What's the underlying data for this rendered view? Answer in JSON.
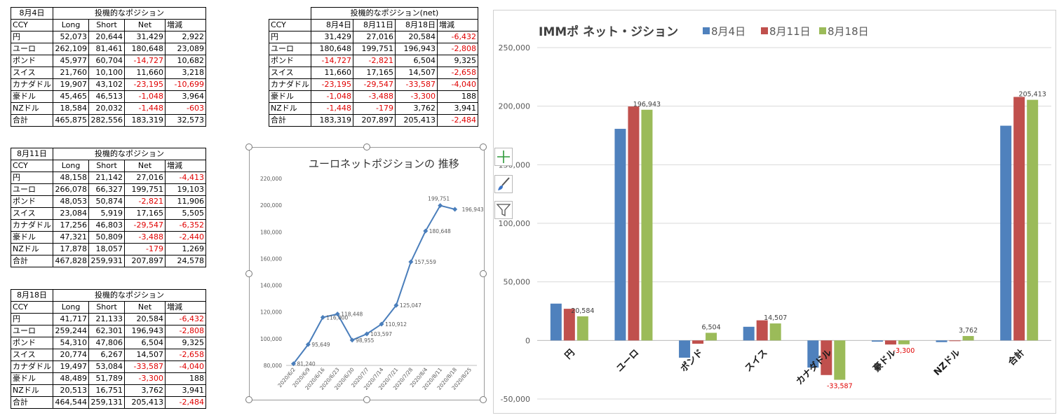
{
  "tables": {
    "aug4": {
      "date": "8月4日",
      "title": "投機的なポジション",
      "headers": [
        "CCY",
        "Long",
        "Short",
        "Net",
        "増減"
      ],
      "rows": [
        [
          "円",
          "52,073",
          "20,644",
          "31,429",
          "2,922"
        ],
        [
          "ユーロ",
          "262,109",
          "81,461",
          "180,648",
          "23,089"
        ],
        [
          "ポンド",
          "45,977",
          "60,704",
          "-14,727",
          "10,682"
        ],
        [
          "スイス",
          "21,760",
          "10,100",
          "11,660",
          "3,218"
        ],
        [
          "カナダドル",
          "19,907",
          "43,102",
          "-23,195",
          "-10,699"
        ],
        [
          "豪ドル",
          "45,465",
          "46,513",
          "-1,048",
          "3,964"
        ],
        [
          "NZドル",
          "18,584",
          "20,032",
          "-1,448",
          "-603"
        ],
        [
          "合計",
          "465,875",
          "282,556",
          "183,319",
          "32,573"
        ]
      ]
    },
    "aug11": {
      "date": "8月11日",
      "title": "投機的なポジション",
      "headers": [
        "CCY",
        "Long",
        "Short",
        "Net",
        "増減"
      ],
      "rows": [
        [
          "円",
          "48,158",
          "21,142",
          "27,016",
          "-4,413"
        ],
        [
          "ユーロ",
          "266,078",
          "66,327",
          "199,751",
          "19,103"
        ],
        [
          "ポンド",
          "48,053",
          "50,874",
          "-2,821",
          "11,906"
        ],
        [
          "スイス",
          "23,084",
          "5,919",
          "17,165",
          "5,505"
        ],
        [
          "カナダドル",
          "17,256",
          "46,803",
          "-29,547",
          "-6,352"
        ],
        [
          "豪ドル",
          "47,321",
          "50,809",
          "-3,488",
          "-2,440"
        ],
        [
          "NZドル",
          "17,878",
          "18,057",
          "-179",
          "1,269"
        ],
        [
          "合計",
          "467,828",
          "259,931",
          "207,897",
          "24,578"
        ]
      ]
    },
    "aug18": {
      "date": "8月18日",
      "title": "投機的なポジション",
      "headers": [
        "CCY",
        "Long",
        "Short",
        "Net",
        "増減"
      ],
      "rows": [
        [
          "円",
          "41,717",
          "21,133",
          "20,584",
          "-6,432"
        ],
        [
          "ユーロ",
          "259,244",
          "62,301",
          "196,943",
          "-2,808"
        ],
        [
          "ポンド",
          "54,310",
          "47,806",
          "6,504",
          "9,325"
        ],
        [
          "スイス",
          "20,774",
          "6,267",
          "14,507",
          "-2,658"
        ],
        [
          "カナダドル",
          "19,497",
          "53,084",
          "-33,587",
          "-4,040"
        ],
        [
          "豪ドル",
          "48,489",
          "51,789",
          "-3,300",
          "188"
        ],
        [
          "NZドル",
          "20,513",
          "16,751",
          "3,762",
          "3,941"
        ],
        [
          "合計",
          "464,544",
          "259,131",
          "205,413",
          "-2,484"
        ]
      ]
    },
    "net": {
      "title": "投機的なポジション(net)",
      "headers": [
        "CCY",
        "8月4日",
        "8月11日",
        "8月18日",
        "増減"
      ],
      "rows": [
        [
          "円",
          "31,429",
          "27,016",
          "20,584",
          "-6,432"
        ],
        [
          "ユーロ",
          "180,648",
          "199,751",
          "196,943",
          "-2,808"
        ],
        [
          "ポンド",
          "-14,727",
          "-2,821",
          "6,504",
          "9,325"
        ],
        [
          "スイス",
          "11,660",
          "17,165",
          "14,507",
          "-2,658"
        ],
        [
          "カナダドル",
          "-23,195",
          "-29,547",
          "-33,587",
          "-4,040"
        ],
        [
          "豪ドル",
          "-1,048",
          "-3,488",
          "-3,300",
          "188"
        ],
        [
          "NZドル",
          "-1,448",
          "-179",
          "3,762",
          "3,941"
        ],
        [
          "合計",
          "183,319",
          "207,897",
          "205,413",
          "-2,484"
        ]
      ]
    }
  },
  "toolbar_icons": [
    "chart-elements-plus-icon",
    "chart-styles-brush-icon",
    "chart-filters-funnel-icon"
  ],
  "chart_data": [
    {
      "type": "line",
      "title": "ユーロネットポジションの 推移",
      "x": [
        "2020/6/2",
        "2020/6/9",
        "2020/6/16",
        "2020/6/23",
        "2020/6/30",
        "2020/7/7",
        "2020/7/14",
        "2020/7/21",
        "2020/7/28",
        "2020/8/4",
        "2020/8/11",
        "2020/8/18",
        "2020/8/25"
      ],
      "values": [
        81240,
        95649,
        116000,
        118448,
        98955,
        103597,
        110912,
        125047,
        157559,
        180648,
        199751,
        196943,
        null
      ],
      "data_labels": [
        "81,240",
        "95,649",
        "116,000",
        "118,448",
        "98,955",
        "103,597",
        "110,912",
        "125,047",
        "157,559",
        "180,648",
        "199,751",
        "196,943",
        ""
      ],
      "yticks": [
        "80,000",
        "100,000",
        "120,000",
        "140,000",
        "160,000",
        "180,000",
        "200,000",
        "220,000"
      ],
      "ylim": [
        80000,
        220000
      ],
      "color": "#4a7ebb",
      "grid": false
    },
    {
      "type": "bar",
      "title": "IMMポ ネット・ジション",
      "categories": [
        "円",
        "ユーロ",
        "ポンド",
        "スイス",
        "カナダドル",
        "豪ドル",
        "NZドル",
        "合計"
      ],
      "series": [
        {
          "name": "8月4日",
          "color": "#4f81bd",
          "values": [
            31429,
            180648,
            -14727,
            11660,
            -23195,
            -1048,
            -1448,
            183319
          ]
        },
        {
          "name": "8月11日",
          "color": "#c0504d",
          "values": [
            27016,
            199751,
            -2821,
            17165,
            -29547,
            -3488,
            -179,
            207897
          ]
        },
        {
          "name": "8月18日",
          "color": "#9bbb59",
          "values": [
            20584,
            196943,
            6504,
            14507,
            -33587,
            -3300,
            3762,
            205413
          ]
        }
      ],
      "data_labels_last_series": [
        "20,584",
        "196,943",
        "6,504",
        "14,507",
        "-33,587",
        "-3,300",
        "3,762",
        "205,413"
      ],
      "yticks": [
        "-50,000",
        "0",
        "50,000",
        "100,000",
        "150,000",
        "200,000",
        "250,000"
      ],
      "ylim": [
        -50000,
        250000
      ],
      "legend_position": "top",
      "grid": true
    }
  ]
}
